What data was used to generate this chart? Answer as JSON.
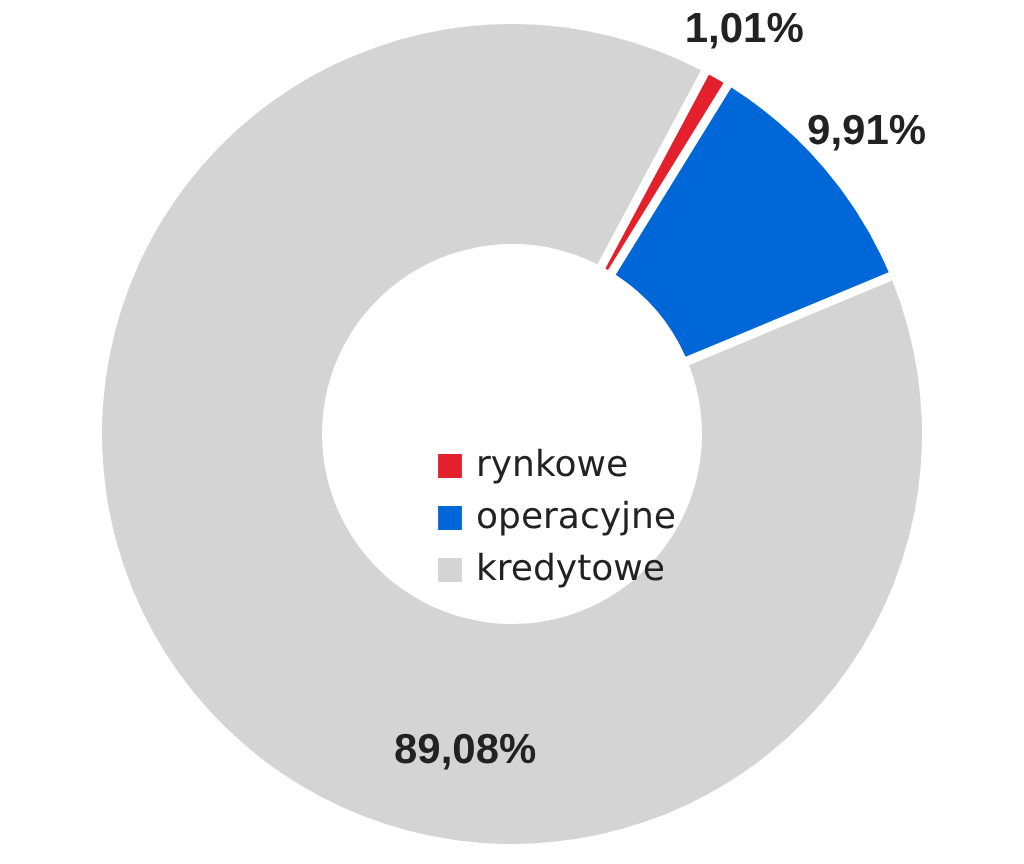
{
  "chart_data": {
    "type": "donut",
    "categories": [
      "rynkowe",
      "operacyjne",
      "kredytowe"
    ],
    "values": [
      1.01,
      9.91,
      89.08
    ],
    "colors": [
      "#e3202b",
      "#0067d8",
      "#d4d4d4"
    ],
    "value_labels": [
      "1,01%",
      "9,91%",
      "89,08%"
    ],
    "legend": "center"
  }
}
